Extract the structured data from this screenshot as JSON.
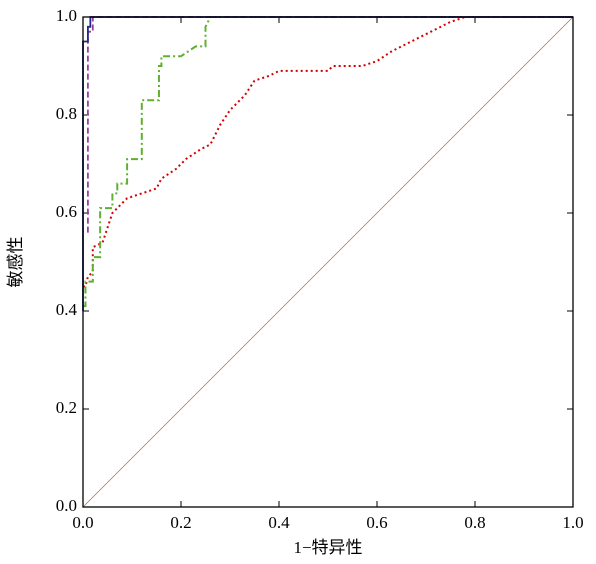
{
  "chart_data": {
    "type": "line",
    "x_label": "1−特异性",
    "y_label": "敏感性",
    "xlim": [
      0,
      1
    ],
    "ylim": [
      0,
      1
    ],
    "xticks": [
      {
        "value": 0,
        "label": "0.0"
      },
      {
        "value": 0.2,
        "label": "0.2"
      },
      {
        "value": 0.4,
        "label": "0.4"
      },
      {
        "value": 0.6,
        "label": "0.6"
      },
      {
        "value": 0.8,
        "label": "0.8"
      },
      {
        "value": 1,
        "label": "1.0"
      }
    ],
    "yticks": [
      {
        "value": 0,
        "label": "0.0"
      },
      {
        "value": 0.2,
        "label": "0.2"
      },
      {
        "value": 0.4,
        "label": "0.4"
      },
      {
        "value": 0.6,
        "label": "0.6"
      },
      {
        "value": 0.8,
        "label": "0.8"
      },
      {
        "value": 1,
        "label": "1.0"
      }
    ],
    "series": [
      {
        "color": "#b5655a",
        "dash": "none",
        "width": 0.7,
        "x": [
          0,
          1
        ],
        "values": [
          0,
          1
        ]
      },
      {
        "color": "#d40000",
        "dash": "2,3",
        "width": 2,
        "x": [
          0,
          0.005,
          0.01,
          0.02,
          0.02,
          0.04,
          0.05,
          0.06,
          0.09,
          0.12,
          0.15,
          0.16,
          0.19,
          0.21,
          0.24,
          0.26,
          0.28,
          0.3,
          0.33,
          0.35,
          0.38,
          0.4,
          0.5,
          0.51,
          0.57,
          0.6,
          0.63,
          0.67,
          0.71,
          0.75,
          0.78,
          1
        ],
        "values": [
          0.45,
          0.45,
          0.47,
          0.48,
          0.53,
          0.54,
          0.57,
          0.6,
          0.63,
          0.64,
          0.65,
          0.67,
          0.69,
          0.71,
          0.73,
          0.74,
          0.78,
          0.81,
          0.84,
          0.87,
          0.88,
          0.89,
          0.89,
          0.9,
          0.9,
          0.91,
          0.93,
          0.95,
          0.97,
          0.99,
          1,
          1
        ]
      },
      {
        "color": "#5fb030",
        "dash": "7,3,2,3",
        "width": 2,
        "x": [
          0,
          0.005,
          0.005,
          0.02,
          0.02,
          0.035,
          0.035,
          0.06,
          0.06,
          0.07,
          0.07,
          0.09,
          0.09,
          0.12,
          0.12,
          0.155,
          0.155,
          0.16,
          0.16,
          0.2,
          0.23,
          0.25,
          0.25,
          0.26,
          1
        ],
        "values": [
          0.41,
          0.41,
          0.46,
          0.46,
          0.51,
          0.51,
          0.61,
          0.61,
          0.64,
          0.64,
          0.66,
          0.66,
          0.71,
          0.71,
          0.83,
          0.83,
          0.9,
          0.9,
          0.92,
          0.92,
          0.94,
          0.94,
          0.98,
          1,
          1
        ]
      },
      {
        "color": "#9a3fa0",
        "dash": "6,3",
        "width": 1.8,
        "x": [
          0.01,
          0.01,
          0.02,
          0.02,
          1
        ],
        "values": [
          0.56,
          0.97,
          0.97,
          1,
          1
        ]
      },
      {
        "color": "#1f2a8a",
        "dash": "none",
        "width": 1.8,
        "x": [
          0,
          0,
          0.01,
          0.01,
          0.015,
          0.015,
          1
        ],
        "values": [
          0.4,
          0.95,
          0.95,
          0.98,
          0.98,
          1,
          1
        ]
      }
    ]
  }
}
